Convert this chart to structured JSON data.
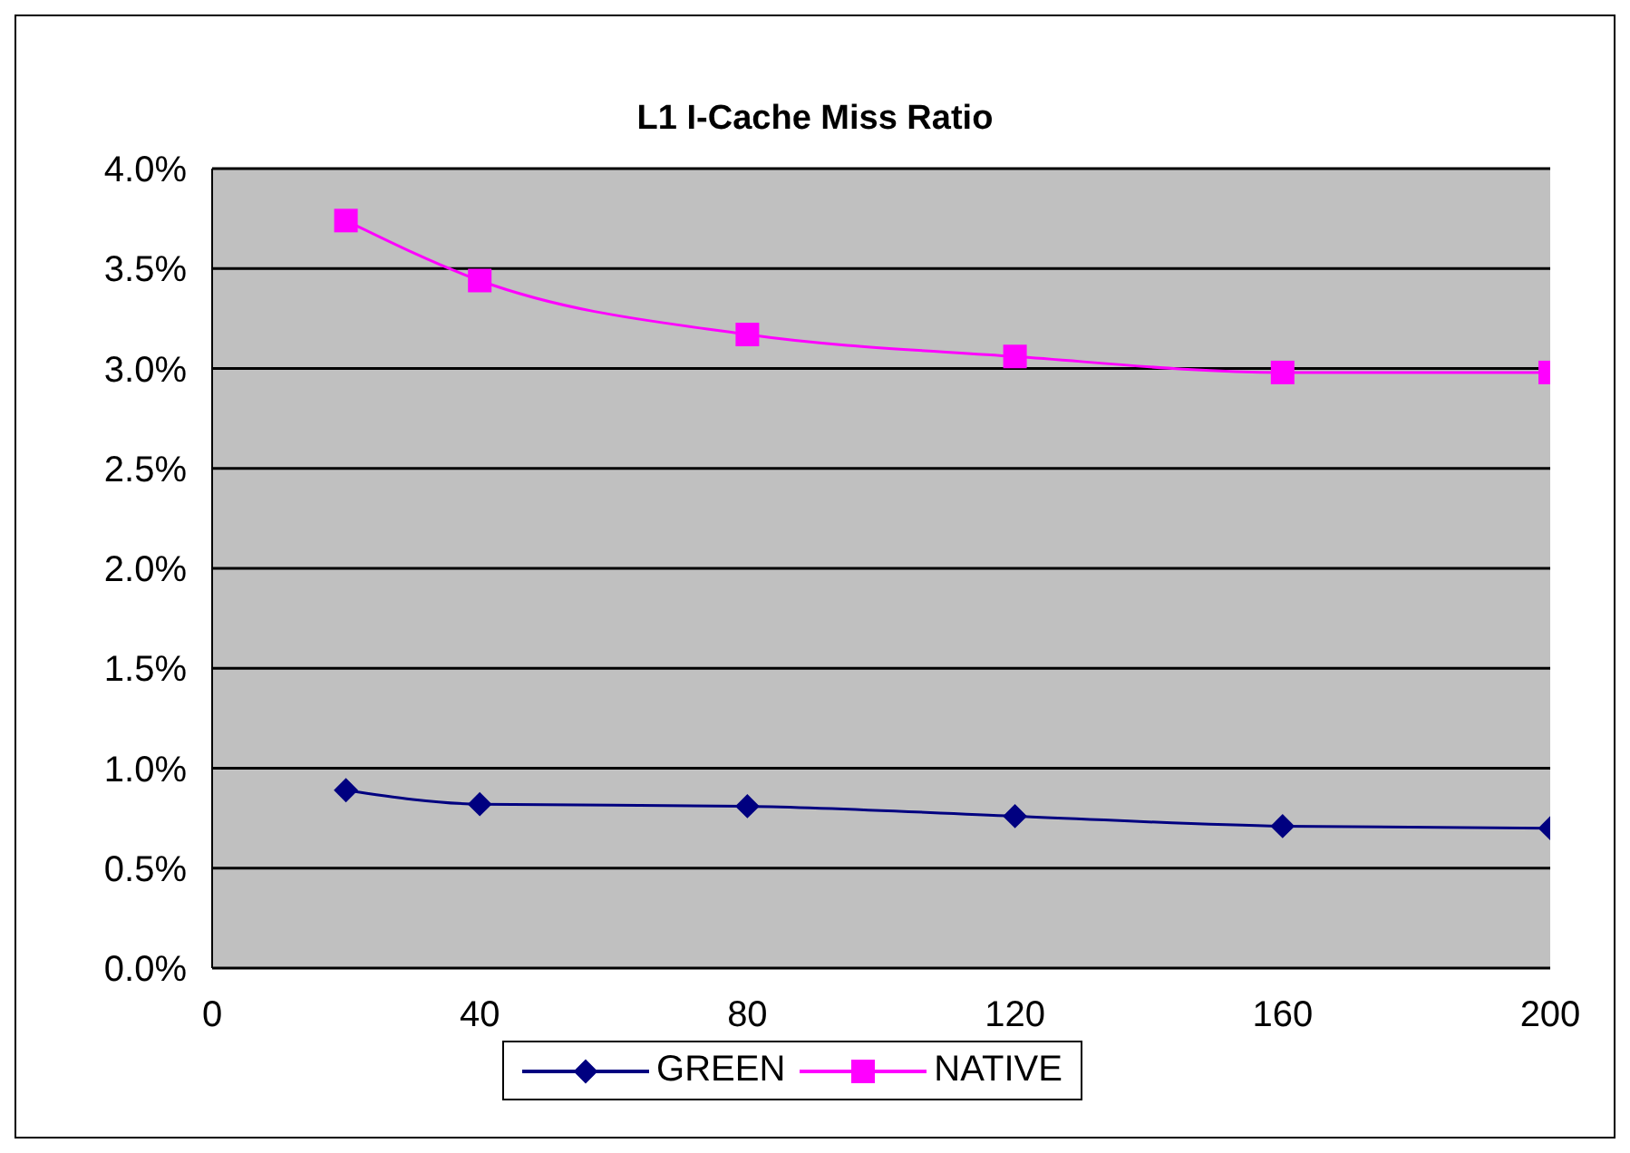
{
  "chart_data": {
    "type": "line",
    "title": "L1 I-Cache Miss Ratio",
    "x": [
      20,
      40,
      80,
      120,
      160,
      200
    ],
    "series": [
      {
        "name": "GREEN",
        "color": "#000080",
        "marker": "diamond",
        "values": [
          0.89,
          0.82,
          0.81,
          0.76,
          0.71,
          0.7
        ]
      },
      {
        "name": "NATIVE",
        "color": "#ff00ff",
        "marker": "square",
        "values": [
          3.74,
          3.44,
          3.17,
          3.06,
          2.98,
          2.98
        ]
      }
    ],
    "xlim": [
      0,
      200
    ],
    "xticks": [
      0,
      40,
      80,
      120,
      160,
      200
    ],
    "ylim": [
      0,
      4
    ],
    "yticks": [
      {
        "value": 0,
        "label": "0.0%"
      },
      {
        "value": 0.5,
        "label": "0.5%"
      },
      {
        "value": 1,
        "label": "1.0%"
      },
      {
        "value": 1.5,
        "label": "1.5%"
      },
      {
        "value": 2,
        "label": "2.0%"
      },
      {
        "value": 2.5,
        "label": "2.5%"
      },
      {
        "value": 3,
        "label": "3.0%"
      },
      {
        "value": 3.5,
        "label": "3.5%"
      },
      {
        "value": 4,
        "label": "4.0%"
      }
    ],
    "grid": "y",
    "legend": "bottom",
    "line_style": "solid"
  }
}
